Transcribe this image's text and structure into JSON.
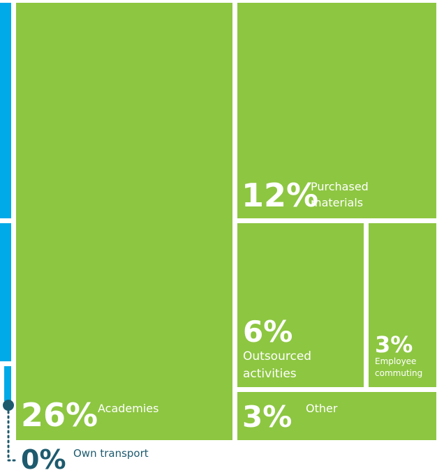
{
  "chart_data": {
    "type": "treemap",
    "categories": [
      "Academies",
      "Purchased materials",
      "Outsourced activities",
      "Employee commuting",
      "Other",
      "Own transport"
    ],
    "values": [
      26,
      12,
      6,
      3,
      3,
      0
    ],
    "value_labels": [
      "26%",
      "12%",
      "6%",
      "3%",
      "3%",
      "0%"
    ],
    "color": "#8dc641"
  }
}
